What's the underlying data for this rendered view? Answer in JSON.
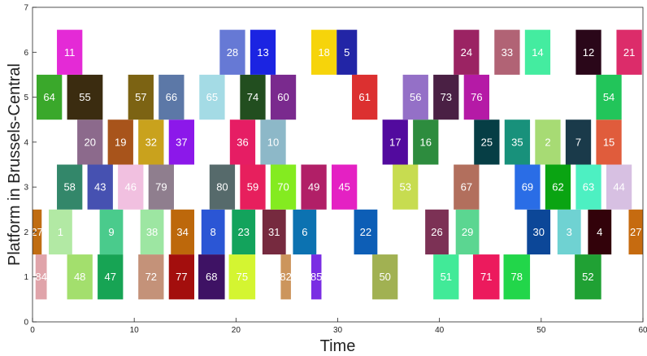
{
  "chart_data": {
    "type": "gantt",
    "xlabel": "Time",
    "ylabel": "Platform in Brussels-Central",
    "xlim": [
      0,
      60
    ],
    "ylim": [
      0,
      7
    ],
    "xticks": [
      "0",
      "10",
      "20",
      "30",
      "40",
      "50",
      "60"
    ],
    "yticks": [
      "0",
      "1",
      "2",
      "3",
      "4",
      "5",
      "6",
      "7"
    ],
    "bar_height": 1.0,
    "bars": [
      {
        "label": "84",
        "platform": 1,
        "start": 0.3,
        "end": 1.4,
        "color": "#e0a4aa"
      },
      {
        "label": "48",
        "platform": 1,
        "start": 3.4,
        "end": 5.9,
        "color": "#a3df6d"
      },
      {
        "label": "47",
        "platform": 1,
        "start": 6.4,
        "end": 8.9,
        "color": "#17a454"
      },
      {
        "label": "72",
        "platform": 1,
        "start": 10.4,
        "end": 12.9,
        "color": "#c49279"
      },
      {
        "label": "77",
        "platform": 1,
        "start": 13.4,
        "end": 15.9,
        "color": "#a30e0d"
      },
      {
        "label": "68",
        "platform": 1,
        "start": 16.3,
        "end": 18.9,
        "color": "#3e1264"
      },
      {
        "label": "75",
        "platform": 1,
        "start": 19.3,
        "end": 21.9,
        "color": "#d4f531"
      },
      {
        "label": "82",
        "platform": 1,
        "start": 24.4,
        "end": 25.4,
        "color": "#cc955c"
      },
      {
        "label": "85",
        "platform": 1,
        "start": 27.4,
        "end": 28.4,
        "color": "#7a2ee3"
      },
      {
        "label": "50",
        "platform": 1,
        "start": 33.4,
        "end": 35.9,
        "color": "#a1b152"
      },
      {
        "label": "51",
        "platform": 1,
        "start": 39.4,
        "end": 41.9,
        "color": "#41ea98"
      },
      {
        "label": "71",
        "platform": 1,
        "start": 43.3,
        "end": 45.9,
        "color": "#ec1a5d"
      },
      {
        "label": "78",
        "platform": 1,
        "start": 46.3,
        "end": 48.9,
        "color": "#22d64a"
      },
      {
        "label": "52",
        "platform": 1,
        "start": 53.3,
        "end": 55.9,
        "color": "#20a134"
      },
      {
        "label": "27",
        "platform": 2,
        "start": 0.0,
        "end": 0.9,
        "color": "#c06d12"
      },
      {
        "label": "1",
        "platform": 2,
        "start": 1.6,
        "end": 3.9,
        "color": "#b2e9a4"
      },
      {
        "label": "9",
        "platform": 2,
        "start": 6.6,
        "end": 8.9,
        "color": "#4acb8c"
      },
      {
        "label": "38",
        "platform": 2,
        "start": 10.6,
        "end": 12.9,
        "color": "#9de6a2"
      },
      {
        "label": "34",
        "platform": 2,
        "start": 13.6,
        "end": 15.9,
        "color": "#bd680b"
      },
      {
        "label": "8",
        "platform": 2,
        "start": 16.6,
        "end": 18.9,
        "color": "#2b56d5"
      },
      {
        "label": "23",
        "platform": 2,
        "start": 19.6,
        "end": 21.9,
        "color": "#13a35c"
      },
      {
        "label": "31",
        "platform": 2,
        "start": 22.6,
        "end": 24.9,
        "color": "#762a3f"
      },
      {
        "label": "6",
        "platform": 2,
        "start": 25.6,
        "end": 27.9,
        "color": "#0c72b1"
      },
      {
        "label": "22",
        "platform": 2,
        "start": 31.6,
        "end": 33.9,
        "color": "#0d5eb6"
      },
      {
        "label": "26",
        "platform": 2,
        "start": 38.6,
        "end": 40.9,
        "color": "#7c3155"
      },
      {
        "label": "29",
        "platform": 2,
        "start": 41.6,
        "end": 43.9,
        "color": "#5bd691"
      },
      {
        "label": "30",
        "platform": 2,
        "start": 48.6,
        "end": 50.9,
        "color": "#0c4798"
      },
      {
        "label": "3",
        "platform": 2,
        "start": 51.6,
        "end": 53.9,
        "color": "#6fd2d2"
      },
      {
        "label": "4",
        "platform": 2,
        "start": 54.6,
        "end": 56.9,
        "color": "#32020a"
      },
      {
        "label": "27",
        "platform": 2,
        "start": 58.6,
        "end": 60.0,
        "color": "#c66b10"
      },
      {
        "label": "58",
        "platform": 3,
        "start": 2.4,
        "end": 4.9,
        "color": "#33876a"
      },
      {
        "label": "43",
        "platform": 3,
        "start": 5.4,
        "end": 7.9,
        "color": "#4651b1"
      },
      {
        "label": "46",
        "platform": 3,
        "start": 8.4,
        "end": 10.9,
        "color": "#f1c0e0"
      },
      {
        "label": "79",
        "platform": 3,
        "start": 11.4,
        "end": 13.9,
        "color": "#8f7e8e"
      },
      {
        "label": "80",
        "platform": 3,
        "start": 17.4,
        "end": 19.9,
        "color": "#566a6b"
      },
      {
        "label": "59",
        "platform": 3,
        "start": 20.4,
        "end": 22.9,
        "color": "#e71f5d"
      },
      {
        "label": "70",
        "platform": 3,
        "start": 23.4,
        "end": 25.9,
        "color": "#84eb20"
      },
      {
        "label": "49",
        "platform": 3,
        "start": 26.4,
        "end": 28.9,
        "color": "#b11f67"
      },
      {
        "label": "45",
        "platform": 3,
        "start": 29.4,
        "end": 31.9,
        "color": "#e421c3"
      },
      {
        "label": "53",
        "platform": 3,
        "start": 35.4,
        "end": 37.9,
        "color": "#c7dc50"
      },
      {
        "label": "67",
        "platform": 3,
        "start": 41.4,
        "end": 43.9,
        "color": "#b26f5d"
      },
      {
        "label": "69",
        "platform": 3,
        "start": 47.4,
        "end": 49.9,
        "color": "#2a6de6"
      },
      {
        "label": "62",
        "platform": 3,
        "start": 50.4,
        "end": 52.9,
        "color": "#0aa412"
      },
      {
        "label": "63",
        "platform": 3,
        "start": 53.4,
        "end": 55.9,
        "color": "#4df0c2"
      },
      {
        "label": "44",
        "platform": 3,
        "start": 56.4,
        "end": 58.9,
        "color": "#d7c0e2"
      },
      {
        "label": "20",
        "platform": 4,
        "start": 4.4,
        "end": 6.9,
        "color": "#8c6a8c"
      },
      {
        "label": "19",
        "platform": 4,
        "start": 7.4,
        "end": 9.9,
        "color": "#a8541b"
      },
      {
        "label": "32",
        "platform": 4,
        "start": 10.4,
        "end": 12.9,
        "color": "#c9a21d"
      },
      {
        "label": "37",
        "platform": 4,
        "start": 13.4,
        "end": 15.9,
        "color": "#8c18ea"
      },
      {
        "label": "36",
        "platform": 4,
        "start": 19.4,
        "end": 21.9,
        "color": "#e61d64"
      },
      {
        "label": "10",
        "platform": 4,
        "start": 22.4,
        "end": 24.9,
        "color": "#8db8c8"
      },
      {
        "label": "17",
        "platform": 4,
        "start": 34.4,
        "end": 36.9,
        "color": "#520a9e"
      },
      {
        "label": "16",
        "platform": 4,
        "start": 37.4,
        "end": 39.9,
        "color": "#2d8c3e"
      },
      {
        "label": "25",
        "platform": 4,
        "start": 43.4,
        "end": 45.9,
        "color": "#063e45"
      },
      {
        "label": "35",
        "platform": 4,
        "start": 46.4,
        "end": 48.9,
        "color": "#18917b"
      },
      {
        "label": "2",
        "platform": 4,
        "start": 49.4,
        "end": 51.9,
        "color": "#a7db74"
      },
      {
        "label": "7",
        "platform": 4,
        "start": 52.4,
        "end": 54.9,
        "color": "#1a3a4a"
      },
      {
        "label": "15",
        "platform": 4,
        "start": 55.4,
        "end": 57.9,
        "color": "#e05c3c"
      },
      {
        "label": "64",
        "platform": 5,
        "start": 0.4,
        "end": 2.9,
        "color": "#3aa82b"
      },
      {
        "label": "55",
        "platform": 5,
        "start": 3.4,
        "end": 6.9,
        "color": "#3b2c10"
      },
      {
        "label": "57",
        "platform": 5,
        "start": 9.4,
        "end": 11.9,
        "color": "#7c6313"
      },
      {
        "label": "66",
        "platform": 5,
        "start": 12.4,
        "end": 14.9,
        "color": "#5c78a7"
      },
      {
        "label": "65",
        "platform": 5,
        "start": 16.4,
        "end": 18.9,
        "color": "#a4dbe5"
      },
      {
        "label": "74",
        "platform": 5,
        "start": 20.4,
        "end": 22.9,
        "color": "#224e1f"
      },
      {
        "label": "60",
        "platform": 5,
        "start": 23.4,
        "end": 25.9,
        "color": "#7a2a8e"
      },
      {
        "label": "61",
        "platform": 5,
        "start": 31.4,
        "end": 33.9,
        "color": "#dc3030"
      },
      {
        "label": "56",
        "platform": 5,
        "start": 36.4,
        "end": 38.9,
        "color": "#9470c7"
      },
      {
        "label": "73",
        "platform": 5,
        "start": 39.4,
        "end": 41.9,
        "color": "#4a2044"
      },
      {
        "label": "76",
        "platform": 5,
        "start": 42.4,
        "end": 44.9,
        "color": "#b51aa6"
      },
      {
        "label": "54",
        "platform": 5,
        "start": 55.4,
        "end": 57.9,
        "color": "#22c55a"
      },
      {
        "label": "11",
        "platform": 6,
        "start": 2.4,
        "end": 4.9,
        "color": "#e42ad6"
      },
      {
        "label": "28",
        "platform": 6,
        "start": 18.4,
        "end": 20.9,
        "color": "#6679d5"
      },
      {
        "label": "13",
        "platform": 6,
        "start": 21.4,
        "end": 23.9,
        "color": "#1b24e2"
      },
      {
        "label": "18",
        "platform": 6,
        "start": 27.4,
        "end": 29.9,
        "color": "#f6d40b"
      },
      {
        "label": "5",
        "platform": 6,
        "start": 29.9,
        "end": 31.9,
        "color": "#2225a6"
      },
      {
        "label": "24",
        "platform": 6,
        "start": 41.4,
        "end": 43.9,
        "color": "#9b2363"
      },
      {
        "label": "33",
        "platform": 6,
        "start": 45.4,
        "end": 47.9,
        "color": "#b16375"
      },
      {
        "label": "14",
        "platform": 6,
        "start": 48.4,
        "end": 50.9,
        "color": "#44eca0"
      },
      {
        "label": "12",
        "platform": 6,
        "start": 53.4,
        "end": 55.9,
        "color": "#2a0719"
      },
      {
        "label": "21",
        "platform": 6,
        "start": 57.4,
        "end": 59.9,
        "color": "#dc2c6a"
      }
    ]
  }
}
